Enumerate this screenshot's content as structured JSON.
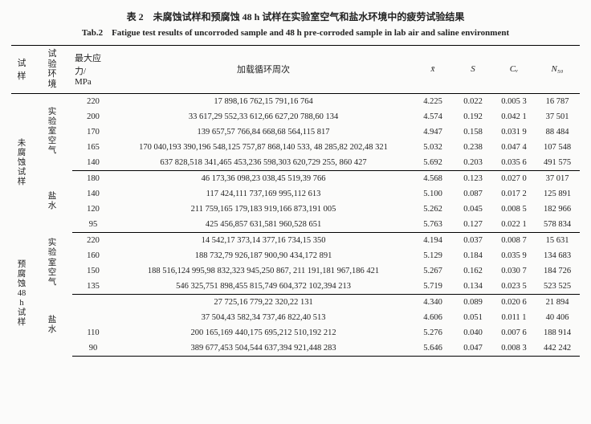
{
  "title_cn": "表 2　未腐蚀试样和预腐蚀 48 h 试样在实验室空气和盐水环境中的疲劳试验结果",
  "title_en": "Tab.2　Fatigue test results of uncorroded sample and 48 h pre-corroded sample in lab air and saline environment",
  "fontsize": {
    "title_cn": 12,
    "title_en": 11,
    "header": 11,
    "body": 10.5
  },
  "colors": {
    "text": "#222222",
    "rule": "#000000",
    "background": "#fbfbfa"
  },
  "columns": {
    "sample": "试样",
    "env": "试验环境",
    "stress": "最大应力/\nMPa",
    "cycles": "加载循环周次",
    "xbar": "x̄",
    "S": "S",
    "Cv": "Cᵥ",
    "N50": "N₅₀"
  },
  "samples": [
    {
      "label": "未腐蚀试样",
      "envs": [
        {
          "label": "实验室空气",
          "rows": [
            {
              "stress": "220",
              "cycles": "17 898,16 762,15 791,16 764",
              "xbar": "4.225",
              "S": "0.022",
              "Cv": "0.005 3",
              "N50": "16 787"
            },
            {
              "stress": "200",
              "cycles": "33 617,29 552,33 612,66 627,20 788,60 134",
              "xbar": "4.574",
              "S": "0.192",
              "Cv": "0.042 1",
              "N50": "37 501"
            },
            {
              "stress": "170",
              "cycles": "139 657,57 766,84 668,68 564,115 817",
              "xbar": "4.947",
              "S": "0.158",
              "Cv": "0.031 9",
              "N50": "88 484"
            },
            {
              "stress": "165",
              "cycles": "170 040,193 390,196 548,125 757,87 868,140 533, 48 285,82 202,48 321",
              "xbar": "5.032",
              "S": "0.238",
              "Cv": "0.047 4",
              "N50": "107 548"
            },
            {
              "stress": "140",
              "cycles": "637 828,518 341,465 453,236 598,303 620,729 255, 860 427",
              "xbar": "5.692",
              "S": "0.203",
              "Cv": "0.035 6",
              "N50": "491 575"
            }
          ]
        },
        {
          "label": "盐水",
          "rows": [
            {
              "stress": "180",
              "cycles": "46 173,36 098,23 038,45 519,39 766",
              "xbar": "4.568",
              "S": "0.123",
              "Cv": "0.027 0",
              "N50": "37 017"
            },
            {
              "stress": "140",
              "cycles": "117 424,111 737,169 995,112 613",
              "xbar": "5.100",
              "S": "0.087",
              "Cv": "0.017 2",
              "N50": "125 891"
            },
            {
              "stress": "120",
              "cycles": "211 759,165 179,183 919,166 873,191 005",
              "xbar": "5.262",
              "S": "0.045",
              "Cv": "0.008 5",
              "N50": "182 966"
            },
            {
              "stress": "95",
              "cycles": "425 456,857 631,581 960,528 651",
              "xbar": "5.763",
              "S": "0.127",
              "Cv": "0.022 1",
              "N50": "578 834"
            }
          ]
        }
      ]
    },
    {
      "label": "预腐蚀48 h试样",
      "envs": [
        {
          "label": "实验室空气",
          "rows": [
            {
              "stress": "220",
              "cycles": "14 542,17 373,14 377,16 734,15 350",
              "xbar": "4.194",
              "S": "0.037",
              "Cv": "0.008 7",
              "N50": "15 631"
            },
            {
              "stress": "160",
              "cycles": "188 732,79 926,187 900,90 434,172 891",
              "xbar": "5.129",
              "S": "0.184",
              "Cv": "0.035 9",
              "N50": "134 683"
            },
            {
              "stress": "150",
              "cycles": "188 516,124 995,98 832,323 945,250 867, 211 191,181 967,186 421",
              "xbar": "5.267",
              "S": "0.162",
              "Cv": "0.030 7",
              "N50": "184 726"
            },
            {
              "stress": "135",
              "cycles": "546 325,751 898,455 815,749 604,372 102,394 213",
              "xbar": "5.719",
              "S": "0.134",
              "Cv": "0.023 5",
              "N50": "523 525"
            }
          ]
        },
        {
          "label": "盐水",
          "rows": [
            {
              "stress": "",
              "cycles": "27 725,16 779,22 320,22 131",
              "xbar": "4.340",
              "S": "0.089",
              "Cv": "0.020 6",
              "N50": "21 894"
            },
            {
              "stress": "",
              "cycles": "37 504,43 582,34 737,46 822,40 513",
              "xbar": "4.606",
              "S": "0.051",
              "Cv": "0.011 1",
              "N50": "40 406"
            },
            {
              "stress": "110",
              "cycles": "200 165,169 440,175 695,212 510,192 212",
              "xbar": "5.276",
              "S": "0.040",
              "Cv": "0.007 6",
              "N50": "188 914"
            },
            {
              "stress": "90",
              "cycles": "389 677,453 504,544 637,394 921,448 283",
              "xbar": "5.646",
              "S": "0.047",
              "Cv": "0.008 3",
              "N50": "442 242"
            }
          ]
        }
      ]
    }
  ]
}
